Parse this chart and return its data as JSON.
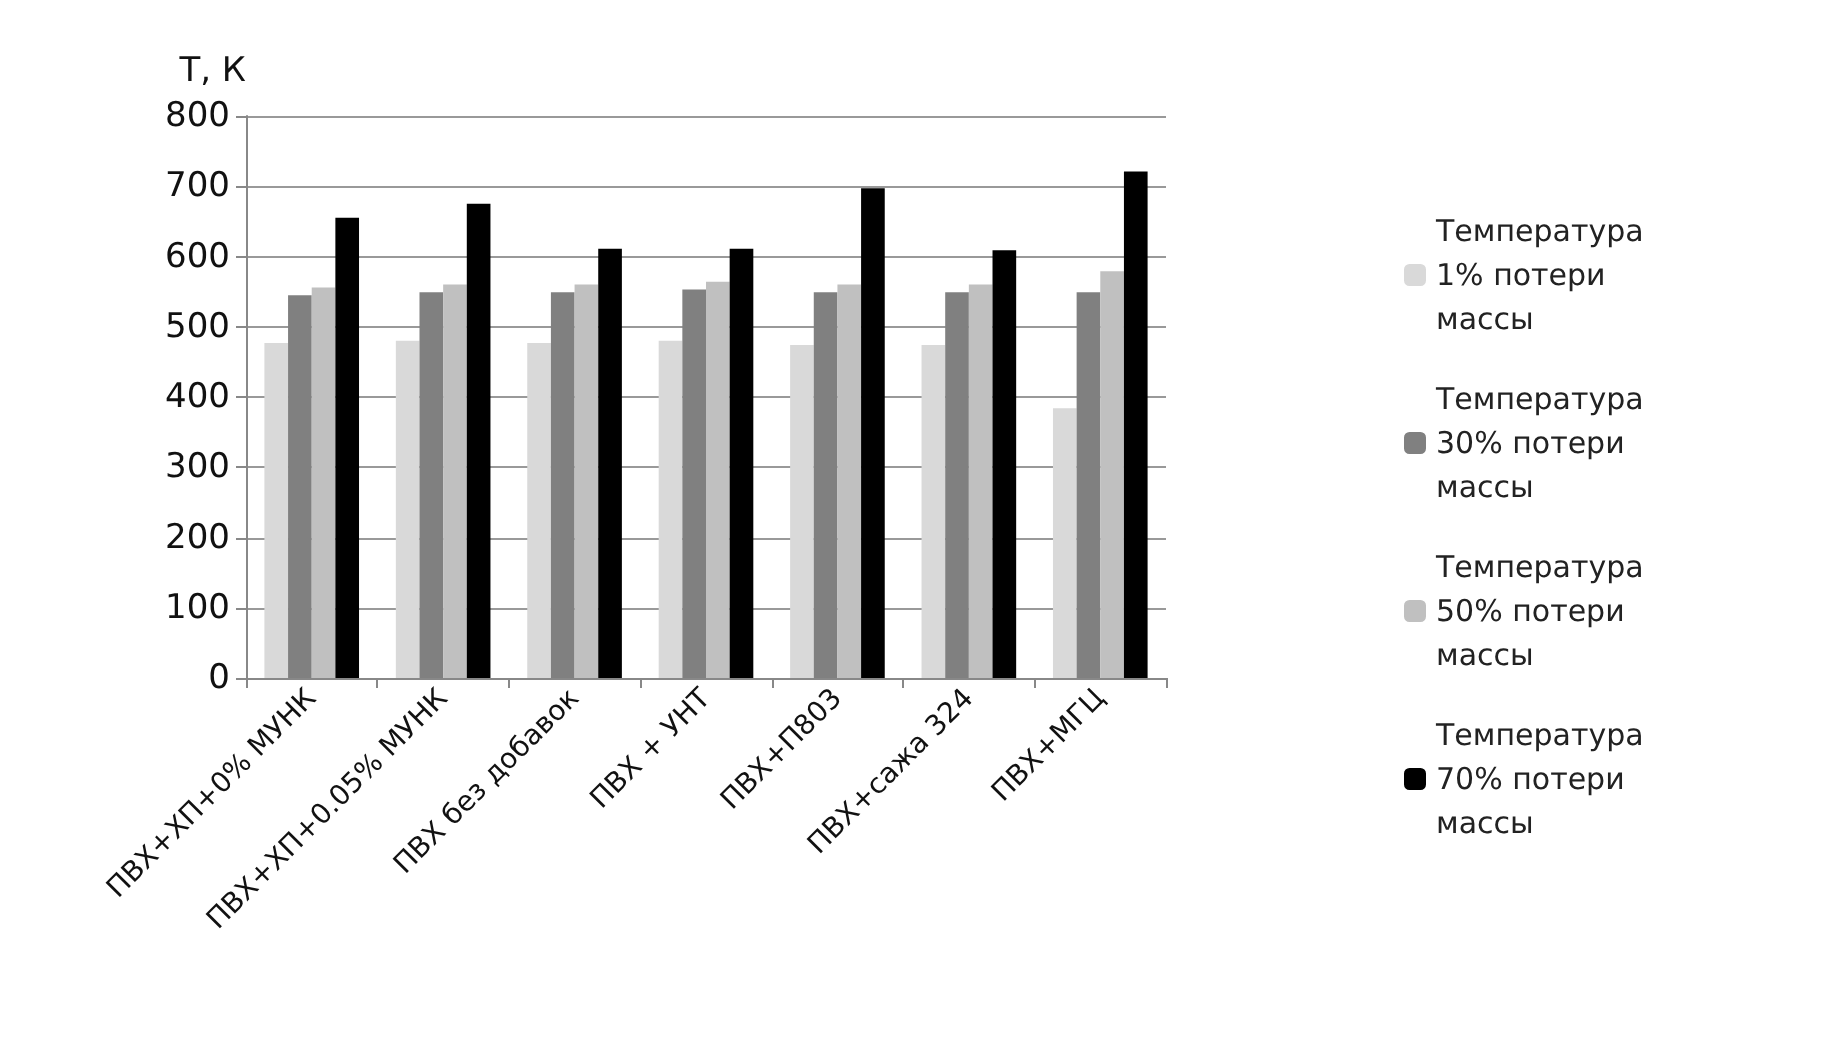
{
  "chart_data": {
    "type": "bar",
    "ylabel": "Т, К",
    "categories": [
      "ПВХ+ХП+0% МУНК",
      "ПВХ+ХП+0.05% МУНК",
      "ПВХ без добавок",
      "ПВХ + УНТ",
      "ПВХ+П803",
      "ПВХ+сажа 324",
      "ПВХ+МГЦ"
    ],
    "series": [
      {
        "name": "Температура 1% потери массы",
        "color": "#d9d9d9",
        "values": [
          477,
          480,
          477,
          480,
          474,
          474,
          384
        ]
      },
      {
        "name": "Температура 30% потери массы",
        "color": "#808080",
        "values": [
          545,
          549,
          549,
          553,
          549,
          549,
          549
        ]
      },
      {
        "name": "Температура 50% потери массы",
        "color": "#c0c0c0",
        "values": [
          556,
          560,
          560,
          564,
          560,
          560,
          579
        ]
      },
      {
        "name": "Температура 70% потери массы",
        "color": "#000000",
        "values": [
          655,
          675,
          611,
          611,
          697,
          609,
          721
        ]
      }
    ],
    "ylim": [
      0,
      800
    ],
    "yticks": [
      0,
      100,
      200,
      300,
      400,
      500,
      600,
      700,
      800
    ],
    "grid": "y",
    "legend": "right"
  }
}
